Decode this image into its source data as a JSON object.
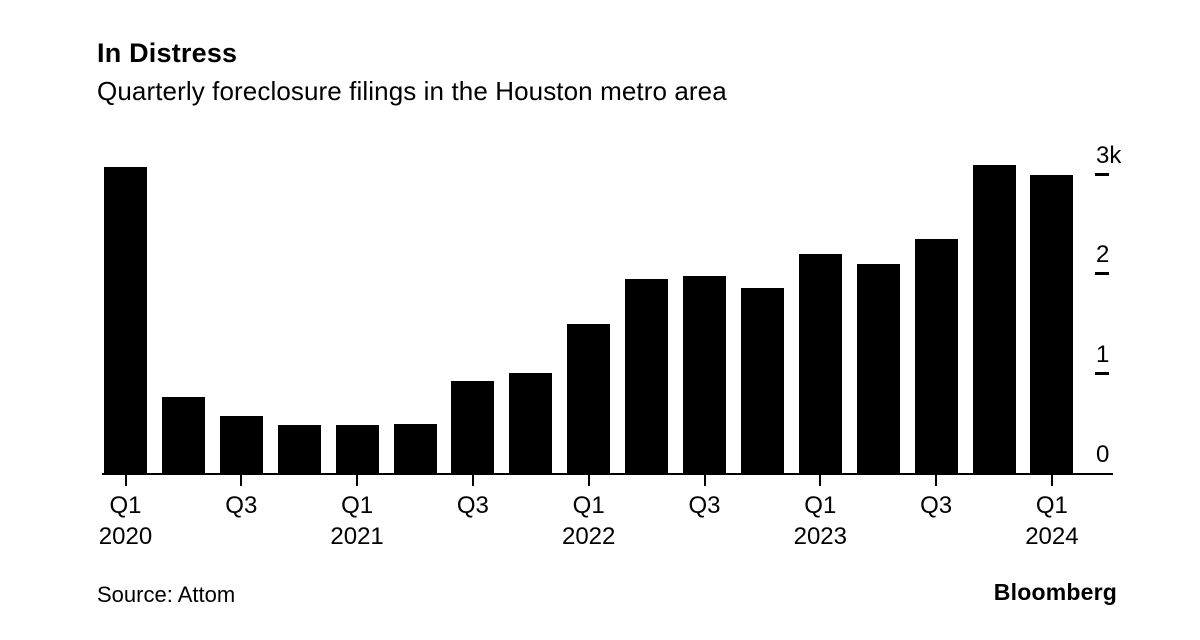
{
  "header": {
    "title": "In Distress",
    "subtitle": "Quarterly foreclosure filings in the Houston metro area"
  },
  "chart_data": {
    "type": "bar",
    "title": "In Distress",
    "subtitle": "Quarterly foreclosure filings in the Houston metro area",
    "categories": [
      "Q1 2020",
      "Q2 2020",
      "Q3 2020",
      "Q4 2020",
      "Q1 2021",
      "Q2 2021",
      "Q3 2021",
      "Q4 2021",
      "Q1 2022",
      "Q2 2022",
      "Q3 2022",
      "Q4 2022",
      "Q1 2023",
      "Q2 2023",
      "Q3 2023",
      "Q4 2023",
      "Q1 2024"
    ],
    "values": [
      3080,
      770,
      580,
      490,
      490,
      500,
      930,
      1010,
      1500,
      1950,
      1980,
      1860,
      2200,
      2100,
      2350,
      3100,
      3000
    ],
    "xlabel": "",
    "ylabel": "",
    "ylim": [
      0,
      3000
    ],
    "grid": false,
    "legend": "none",
    "bar_color": "#000000",
    "background_color": "#ffffff",
    "yticks": [
      {
        "label": "3k",
        "value": 3000
      },
      {
        "label": "2",
        "value": 2000
      },
      {
        "label": "1",
        "value": 1000
      },
      {
        "label": "0",
        "value": 0
      }
    ],
    "xticks": [
      {
        "index": 0,
        "label": "Q1",
        "year": "2020"
      },
      {
        "index": 2,
        "label": "Q3",
        "year": ""
      },
      {
        "index": 4,
        "label": "Q1",
        "year": "2021"
      },
      {
        "index": 6,
        "label": "Q3",
        "year": ""
      },
      {
        "index": 8,
        "label": "Q1",
        "year": "2022"
      },
      {
        "index": 10,
        "label": "Q3",
        "year": ""
      },
      {
        "index": 12,
        "label": "Q1",
        "year": "2023"
      },
      {
        "index": 14,
        "label": "Q3",
        "year": ""
      },
      {
        "index": 16,
        "label": "Q1",
        "year": "2024"
      }
    ]
  },
  "footer": {
    "source": "Source: Attom",
    "brand": "Bloomberg"
  }
}
